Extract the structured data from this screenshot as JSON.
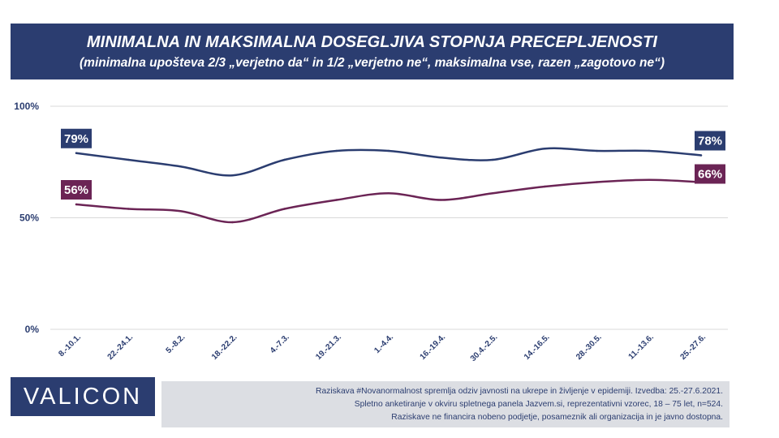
{
  "header": {
    "title": "MINIMALNA IN MAKSIMALNA DOSEGLJIVA STOPNJA PRECEPLJENOSTI",
    "subtitle": "(minimalna upošteva 2/3 „verjetno da“ in 1/2 „verjetno ne“, maksimalna vse, razen „zagotovo ne“)"
  },
  "colors": {
    "max_series": "#2b3d70",
    "min_series": "#6b2455",
    "banner": "#2b3d70",
    "grid": "#d9d9d9",
    "note_background": "#dcdee3"
  },
  "chart_data": {
    "type": "line",
    "title": "MINIMALNA IN MAKSIMALNA DOSEGLJIVA STOPNJA PRECEPLJENOSTI",
    "subtitle": "(minimalna upošteva 2/3 „verjetno da“ in 1/2 „verjetno ne“, maksimalna vse, razen „zagotovo ne“)",
    "categories": [
      "8.-10.1.",
      "22.-24.1.",
      "5.-8.2.",
      "18.-22.2.",
      "4.-7.3.",
      "19.-21.3.",
      "1.-4.4.",
      "16.-19.4.",
      "30.4.-2.5.",
      "14.-16.5.",
      "28.-30.5.",
      "11.-13.6.",
      "25.-27.6."
    ],
    "series": [
      {
        "key": "max",
        "values": [
          79,
          76,
          73,
          69,
          76,
          80,
          80,
          77,
          76,
          81,
          80,
          80,
          78
        ],
        "labels": {
          "first": "79%",
          "last": "78%"
        }
      },
      {
        "key": "min",
        "values": [
          56,
          54,
          53,
          48,
          54,
          58,
          61,
          58,
          61,
          64,
          66,
          67,
          66
        ],
        "labels": {
          "first": "56%",
          "last": "66%"
        }
      }
    ],
    "ytick_labels": [
      "100%",
      "50%",
      "0%"
    ],
    "ylim": [
      0,
      100
    ],
    "grid": true,
    "legend": "none"
  },
  "footer": {
    "logo_text": "VALICON",
    "note_lines": [
      "Raziskava #Novanormalnost spremlja odziv javnosti na ukrepe in življenje v epidemiji. Izvedba: 25.-27.6.2021.",
      "Spletno anketiranje v okviru spletnega panela Jazvem.si, reprezentativni vzorec, 18 – 75 let, n=524.",
      "Raziskave ne financira nobeno podjetje, posameznik ali organizacija in je javno dostopna."
    ]
  }
}
